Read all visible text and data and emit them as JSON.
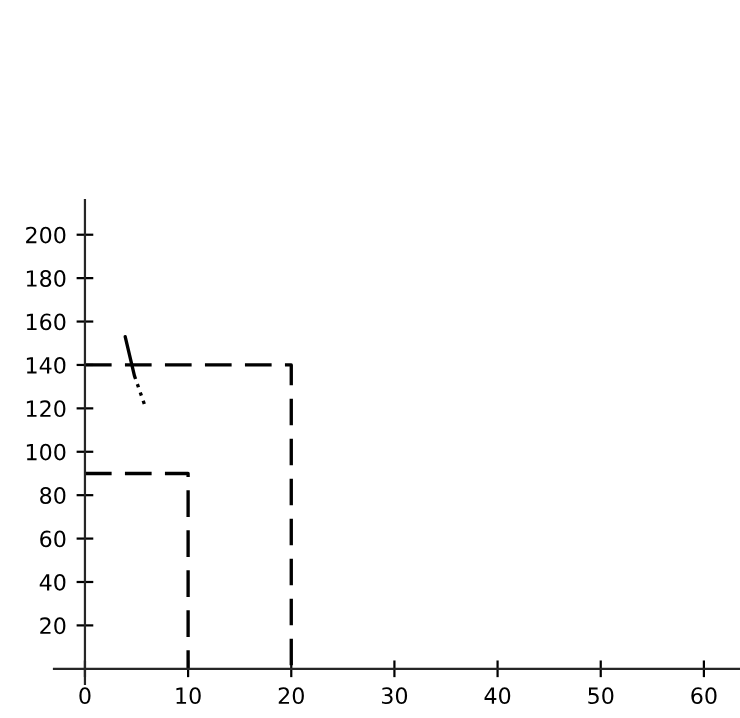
{
  "chart_data": {
    "type": "line",
    "series": [
      {
        "color": "#000000",
        "line_style": "dashed",
        "x": [
          0,
          20,
          20
        ],
        "values": [
          140,
          140,
          0
        ]
      },
      {
        "color": "#000000",
        "line_style": "dashed",
        "x": [
          0,
          10,
          10
        ],
        "values": [
          90,
          90,
          0
        ]
      },
      {
        "color": "#000000",
        "line_style": "solid",
        "x": [
          3.9,
          4.8
        ],
        "values": [
          153,
          135
        ]
      },
      {
        "color": "#000000",
        "line_style": "dotted",
        "x": [
          4.8,
          5.9
        ],
        "values": [
          135,
          120
        ]
      }
    ],
    "xlim": [
      -3,
      63.5
    ],
    "ylim": [
      -7,
      216
    ],
    "xticks": [
      0,
      10,
      20,
      30,
      40,
      50,
      60
    ],
    "yticks": [
      20,
      40,
      60,
      80,
      100,
      120,
      140,
      160,
      180,
      200
    ],
    "grid": false,
    "legend": false,
    "marker": "none"
  }
}
